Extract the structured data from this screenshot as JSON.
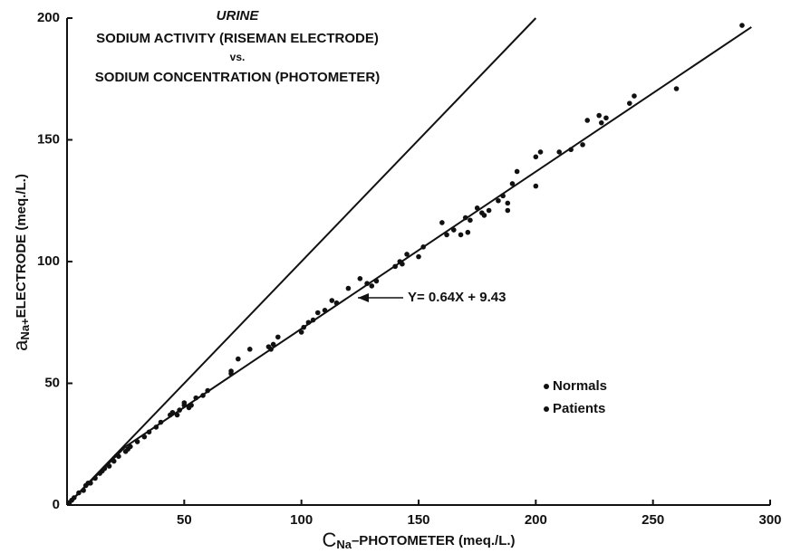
{
  "chart_data": {
    "type": "scatter",
    "title": [
      "URINE",
      "SODIUM ACTIVITY (RISEMAN ELECTRODE)",
      "vs.",
      "SODIUM CONCENTRATION (PHOTOMETER)"
    ],
    "x_label": {
      "symbol": "C",
      "subscript": "Na",
      "text": "–PHOTOMETER (meq./L.)"
    },
    "y_label": {
      "symbol": "a",
      "subscript": "Na+",
      "text": "ELECTRODE (meq./L.)"
    },
    "annotation": "Y= 0.64X + 9.43",
    "legend": [
      "Normals",
      "Patients"
    ],
    "color": "#111111",
    "xlim": [
      0,
      300
    ],
    "ylim": [
      0,
      200
    ],
    "xticks": [
      50,
      100,
      150,
      200,
      250,
      300
    ],
    "yticks": [
      0,
      50,
      100,
      150,
      200
    ],
    "lines": [
      {
        "x": [
          0,
          200
        ],
        "y": [
          0,
          200
        ]
      },
      {
        "x": [
          0,
          25,
          292
        ],
        "y": [
          0,
          24,
          196.3
        ]
      }
    ],
    "x": [
      1,
      2,
      3,
      5,
      7,
      8,
      9,
      10,
      12,
      14,
      15,
      16,
      18,
      20,
      22,
      25,
      26,
      27,
      30,
      33,
      35,
      38,
      40,
      44,
      45,
      47,
      48,
      50,
      50,
      52,
      53,
      55,
      58,
      60,
      70,
      70,
      73,
      78,
      86,
      87,
      88,
      90,
      100,
      101,
      103,
      105,
      107,
      110,
      113,
      115,
      120,
      125,
      128,
      130,
      132,
      140,
      142,
      143,
      145,
      150,
      152,
      160,
      162,
      165,
      168,
      170,
      171,
      172,
      175,
      177,
      178,
      180,
      184,
      186,
      188,
      188,
      190,
      192,
      200,
      200,
      202,
      210,
      215,
      220,
      222,
      227,
      228,
      230,
      240,
      242,
      260,
      288
    ],
    "y": [
      1,
      2,
      3,
      5,
      6,
      8,
      9,
      9,
      11,
      13,
      14,
      15,
      16,
      18,
      20,
      22,
      23,
      24,
      26,
      28,
      30,
      32,
      34,
      37,
      38,
      37,
      39,
      41,
      42,
      40,
      41,
      44,
      45,
      47,
      55,
      54,
      60,
      64,
      65,
      64,
      66,
      69,
      71,
      73,
      75,
      76,
      79,
      80,
      84,
      83,
      89,
      93,
      91,
      90,
      92,
      98,
      100,
      99,
      103,
      102,
      106,
      116,
      111,
      113,
      111,
      118,
      112,
      117,
      122,
      120,
      119,
      121,
      125,
      127,
      121,
      124,
      132,
      137,
      131,
      143,
      145,
      145,
      146,
      148,
      158,
      160,
      157,
      159,
      165,
      168,
      171,
      197
    ]
  }
}
